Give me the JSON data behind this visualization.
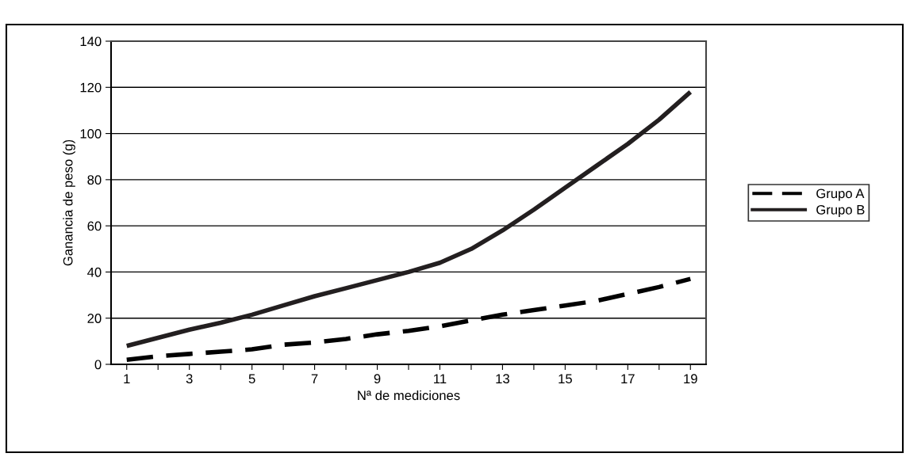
{
  "chart_data": {
    "type": "line",
    "xlabel": "Nª de mediciones",
    "ylabel": "Ganancia de peso (g)",
    "x": [
      1,
      2,
      3,
      4,
      5,
      6,
      7,
      8,
      9,
      10,
      11,
      12,
      13,
      14,
      15,
      16,
      17,
      18,
      19
    ],
    "series": [
      {
        "name": "Grupo A",
        "color": "#000000",
        "line_style": "dashed",
        "values": [
          2,
          3.5,
          4.5,
          5.5,
          6.5,
          8.5,
          9.5,
          11,
          13,
          14.5,
          16.5,
          19,
          21.5,
          23.5,
          25.5,
          27.5,
          30.5,
          33.5,
          37
        ]
      },
      {
        "name": "Grupo B",
        "color": "#231f20",
        "line_style": "solid",
        "values": [
          8,
          11.5,
          15,
          18,
          21.5,
          25.5,
          29.5,
          33,
          36.5,
          40,
          44,
          50,
          58,
          67,
          76.5,
          86,
          95.5,
          106,
          118
        ]
      }
    ],
    "xlim": [
      0.5,
      19.5
    ],
    "xticks": [
      1,
      {
        "value": 2,
        "label": null
      },
      3,
      {
        "value": 4,
        "label": null
      },
      5,
      {
        "value": 6,
        "label": null
      },
      7,
      {
        "value": 8,
        "label": null
      },
      9,
      {
        "value": 10,
        "label": null
      },
      11,
      {
        "value": 12,
        "label": null
      },
      13,
      {
        "value": 14,
        "label": null
      },
      15,
      {
        "value": 16,
        "label": null
      },
      17,
      {
        "value": 18,
        "label": null
      },
      19
    ],
    "ylim": [
      0,
      140
    ],
    "yticks": [
      0,
      20,
      40,
      60,
      80,
      100,
      120,
      140
    ],
    "grid": "y",
    "legend": "right",
    "marker": "none"
  }
}
